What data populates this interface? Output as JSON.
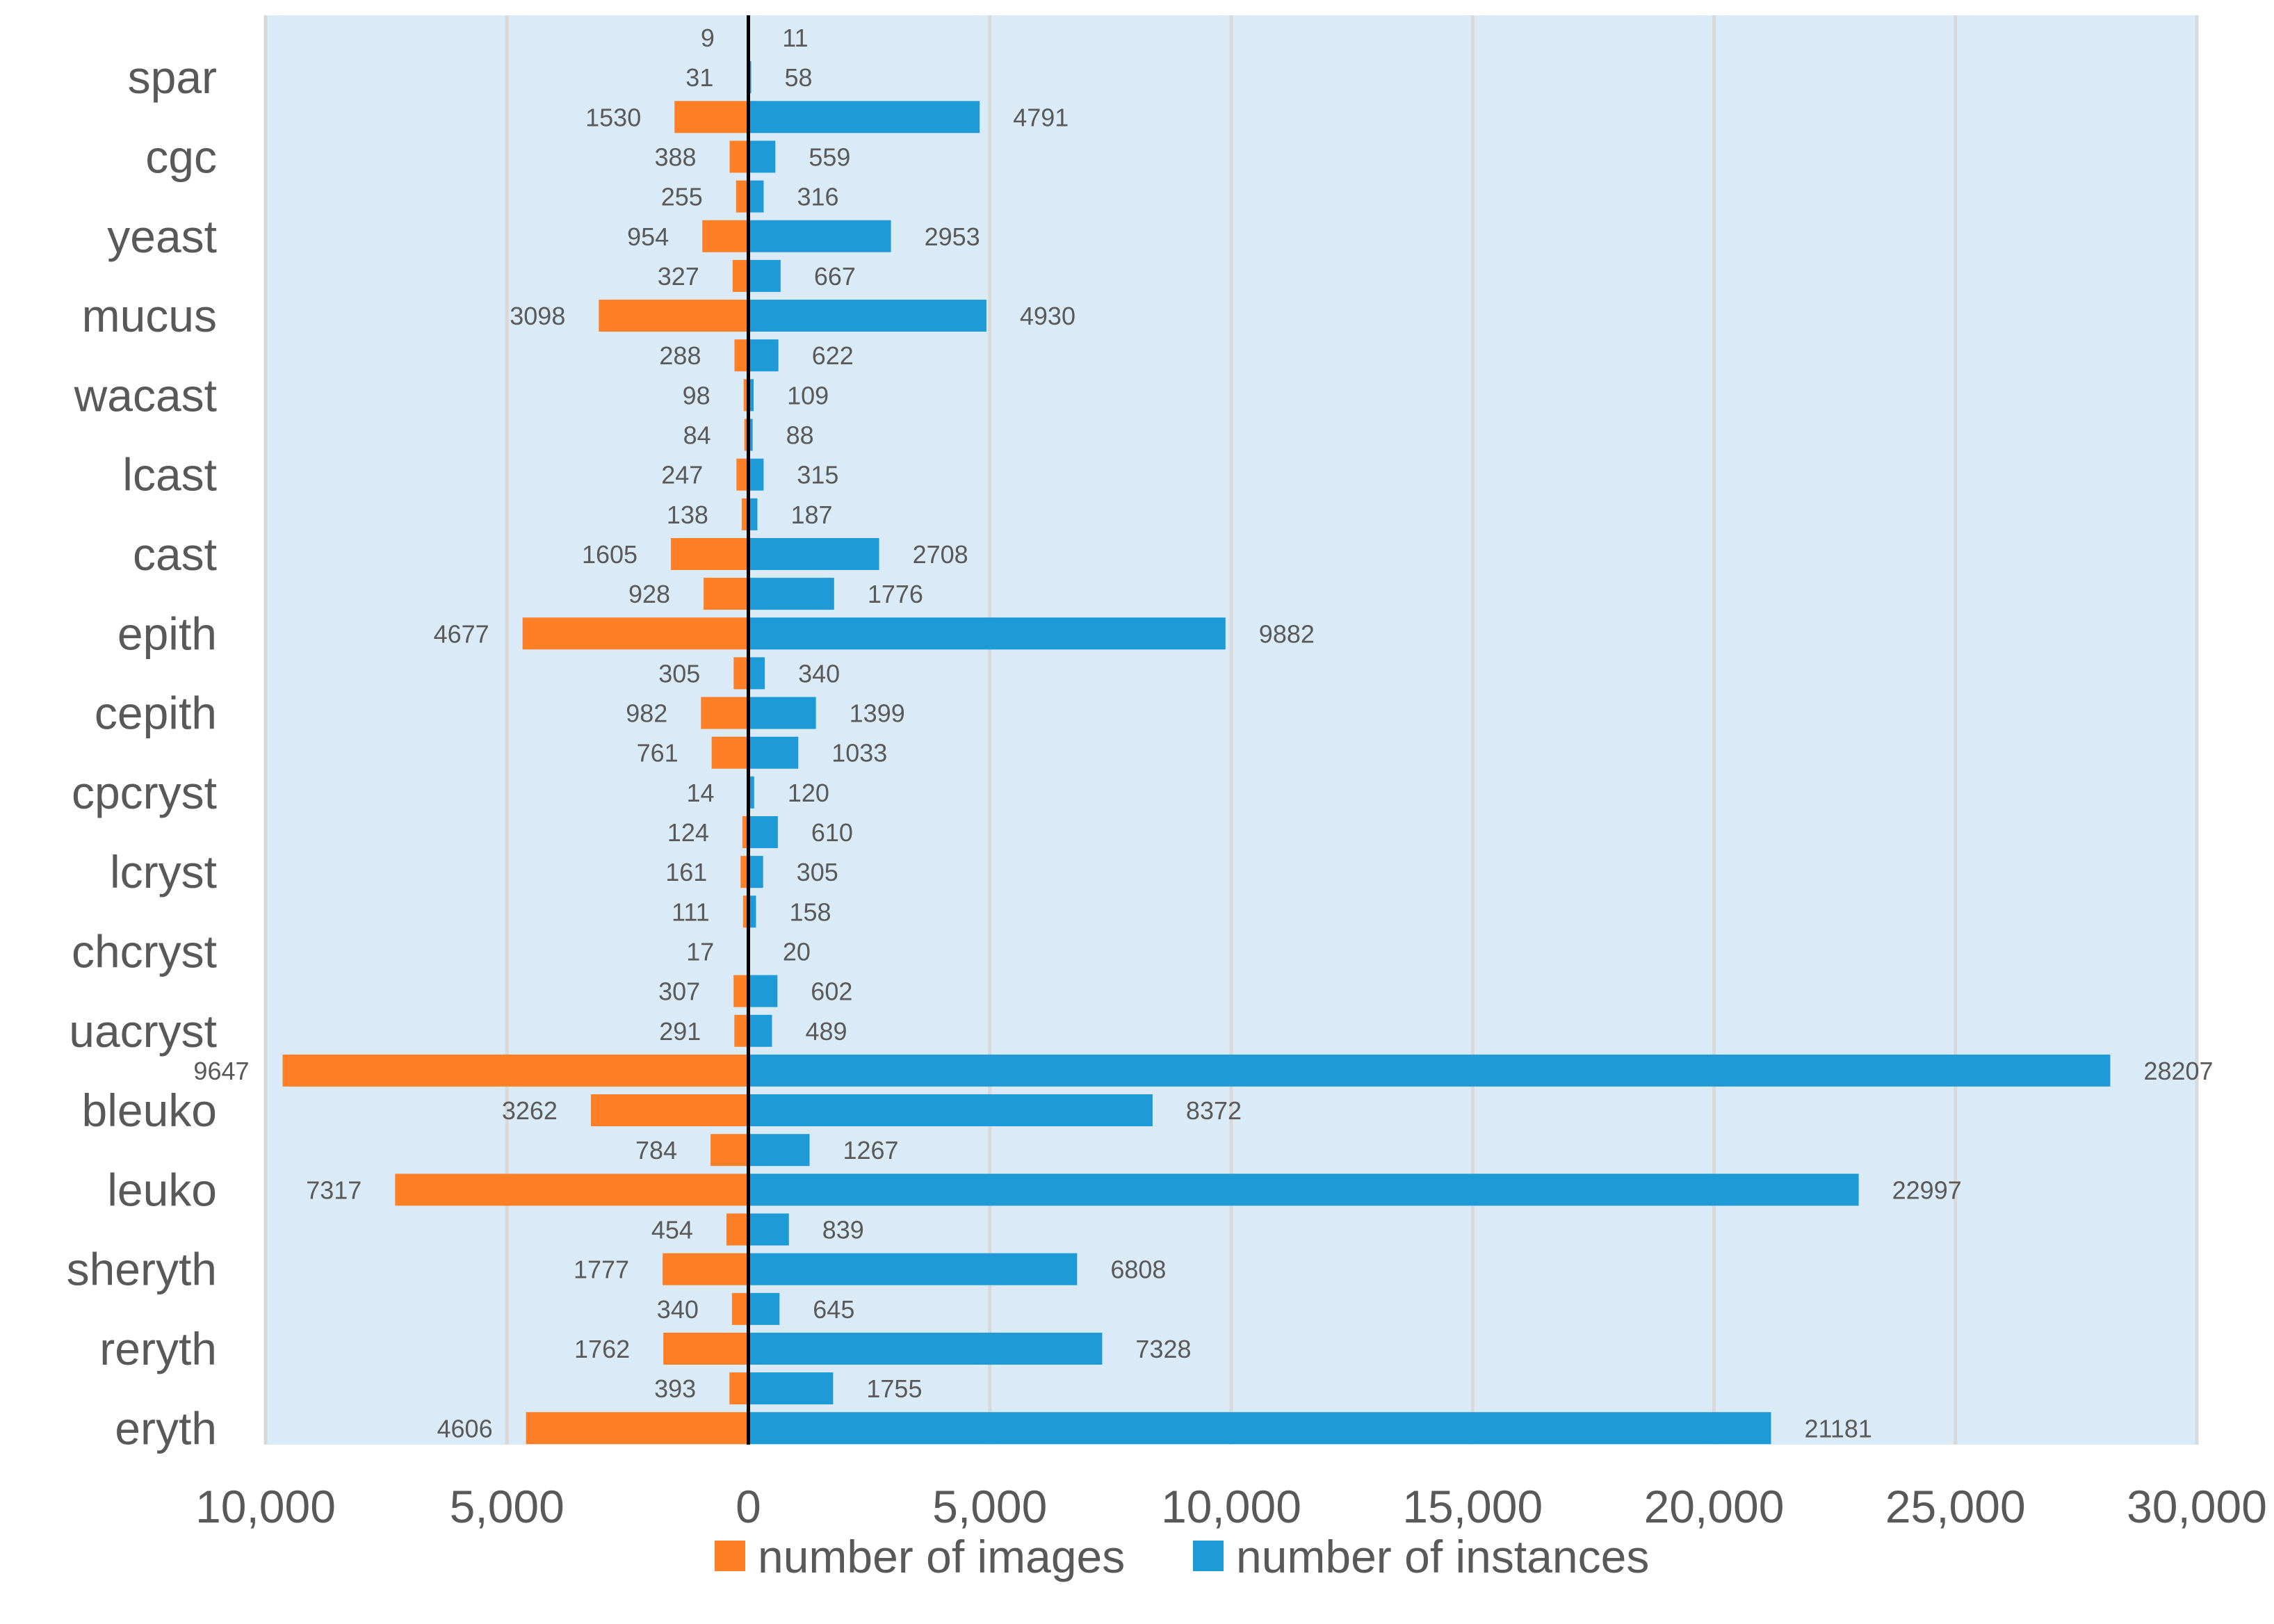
{
  "chart_data": {
    "type": "bar",
    "orientation": "horizontal",
    "layout": "diverging",
    "rows": [
      {
        "category": "",
        "images": 9,
        "instances": 11
      },
      {
        "category": "spar",
        "images": 31,
        "instances": 58
      },
      {
        "category": "",
        "images": 1530,
        "instances": 4791
      },
      {
        "category": "cgc",
        "images": 388,
        "instances": 559
      },
      {
        "category": "",
        "images": 255,
        "instances": 316
      },
      {
        "category": "yeast",
        "images": 954,
        "instances": 2953
      },
      {
        "category": "",
        "images": 327,
        "instances": 667
      },
      {
        "category": "mucus",
        "images": 3098,
        "instances": 4930
      },
      {
        "category": "",
        "images": 288,
        "instances": 622
      },
      {
        "category": "wacast",
        "images": 98,
        "instances": 109
      },
      {
        "category": "",
        "images": 84,
        "instances": 88
      },
      {
        "category": "lcast",
        "images": 247,
        "instances": 315
      },
      {
        "category": "",
        "images": 138,
        "instances": 187
      },
      {
        "category": "cast",
        "images": 1605,
        "instances": 2708
      },
      {
        "category": "",
        "images": 928,
        "instances": 1776
      },
      {
        "category": "epith",
        "images": 4677,
        "instances": 9882
      },
      {
        "category": "",
        "images": 305,
        "instances": 340
      },
      {
        "category": "cepith",
        "images": 982,
        "instances": 1399
      },
      {
        "category": "",
        "images": 761,
        "instances": 1033
      },
      {
        "category": "cpcryst",
        "images": 14,
        "instances": 120
      },
      {
        "category": "",
        "images": 124,
        "instances": 610
      },
      {
        "category": "lcryst",
        "images": 161,
        "instances": 305
      },
      {
        "category": "",
        "images": 111,
        "instances": 158
      },
      {
        "category": "chcryst",
        "images": 17,
        "instances": 20
      },
      {
        "category": "",
        "images": 307,
        "instances": 602
      },
      {
        "category": "uacryst",
        "images": 291,
        "instances": 489
      },
      {
        "category": "",
        "images": 9647,
        "instances": 28207
      },
      {
        "category": "bleuko",
        "images": 3262,
        "instances": 8372
      },
      {
        "category": "",
        "images": 784,
        "instances": 1267
      },
      {
        "category": "leuko",
        "images": 7317,
        "instances": 22997
      },
      {
        "category": "",
        "images": 454,
        "instances": 839
      },
      {
        "category": "sheryth",
        "images": 1777,
        "instances": 6808
      },
      {
        "category": "",
        "images": 340,
        "instances": 645
      },
      {
        "category": "reryth",
        "images": 1762,
        "instances": 7328
      },
      {
        "category": "",
        "images": 393,
        "instances": 1755
      },
      {
        "category": "eryth",
        "images": 4606,
        "instances": 21181
      }
    ],
    "series": [
      {
        "name": "number of images",
        "color": "#FF7F27",
        "direction": "left"
      },
      {
        "name": "number of instances",
        "color": "#1E9BD7",
        "direction": "right"
      }
    ],
    "xlim": [
      -10000,
      30000
    ],
    "xticks": [
      -10000,
      -5000,
      0,
      5000,
      10000,
      15000,
      20000,
      25000,
      30000
    ],
    "xtick_labels": [
      "10,000",
      "5,000",
      "0",
      "5,000",
      "10,000",
      "15,000",
      "20,000",
      "25,000",
      "30,000"
    ],
    "grid": "vertical",
    "legend_position": "bottom",
    "plot_background": "#DAEBF7",
    "gridline_color": "#D9D9D9",
    "zero_line_color": "#000000"
  }
}
